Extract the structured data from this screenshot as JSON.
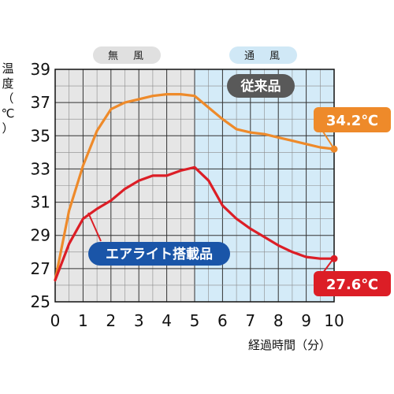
{
  "chart_data": {
    "type": "line",
    "xlabel": "経過時間（分）",
    "ylabel": "温度（℃）",
    "xlim": [
      0,
      10
    ],
    "ylim": [
      25,
      39
    ],
    "xticks": [
      0,
      1,
      2,
      3,
      4,
      5,
      6,
      7,
      8,
      9,
      10
    ],
    "yticks": [
      25,
      27,
      29,
      31,
      33,
      35,
      37,
      39
    ],
    "grid": true,
    "zones": [
      {
        "label": "無　風",
        "from": 0,
        "to": 5,
        "color": "#e6e6e6"
      },
      {
        "label": "通　風",
        "from": 5,
        "to": 10,
        "color": "#d4ebf8"
      }
    ],
    "series": [
      {
        "name": "従来品",
        "color": "#ee8a2a",
        "label_bg": "#595959",
        "end_label": "34.2℃",
        "points": [
          [
            0,
            26.3
          ],
          [
            0.5,
            30.5
          ],
          [
            1,
            33.2
          ],
          [
            1.5,
            35.3
          ],
          [
            2,
            36.6
          ],
          [
            2.5,
            37.0
          ],
          [
            3,
            37.2
          ],
          [
            3.5,
            37.4
          ],
          [
            4,
            37.5
          ],
          [
            4.5,
            37.5
          ],
          [
            5,
            37.4
          ],
          [
            5.5,
            36.7
          ],
          [
            6,
            36.0
          ],
          [
            6.5,
            35.4
          ],
          [
            7,
            35.2
          ],
          [
            7.5,
            35.1
          ],
          [
            8,
            34.9
          ],
          [
            8.5,
            34.7
          ],
          [
            9,
            34.5
          ],
          [
            9.5,
            34.3
          ],
          [
            10,
            34.2
          ]
        ]
      },
      {
        "name": "エアライト搭載品",
        "color": "#dc1e26",
        "label_bg": "#1a55a8",
        "end_label": "27.6℃",
        "points": [
          [
            0,
            26.3
          ],
          [
            0.5,
            28.5
          ],
          [
            1,
            30.0
          ],
          [
            1.5,
            30.6
          ],
          [
            2,
            31.1
          ],
          [
            2.5,
            31.8
          ],
          [
            3,
            32.3
          ],
          [
            3.5,
            32.6
          ],
          [
            4,
            32.6
          ],
          [
            4.5,
            32.9
          ],
          [
            5,
            33.1
          ],
          [
            5.5,
            32.3
          ],
          [
            6,
            30.8
          ],
          [
            6.5,
            30.0
          ],
          [
            7,
            29.4
          ],
          [
            7.5,
            28.9
          ],
          [
            8,
            28.4
          ],
          [
            8.5,
            28.0
          ],
          [
            9,
            27.7
          ],
          [
            9.5,
            27.6
          ],
          [
            10,
            27.6
          ]
        ]
      }
    ]
  }
}
